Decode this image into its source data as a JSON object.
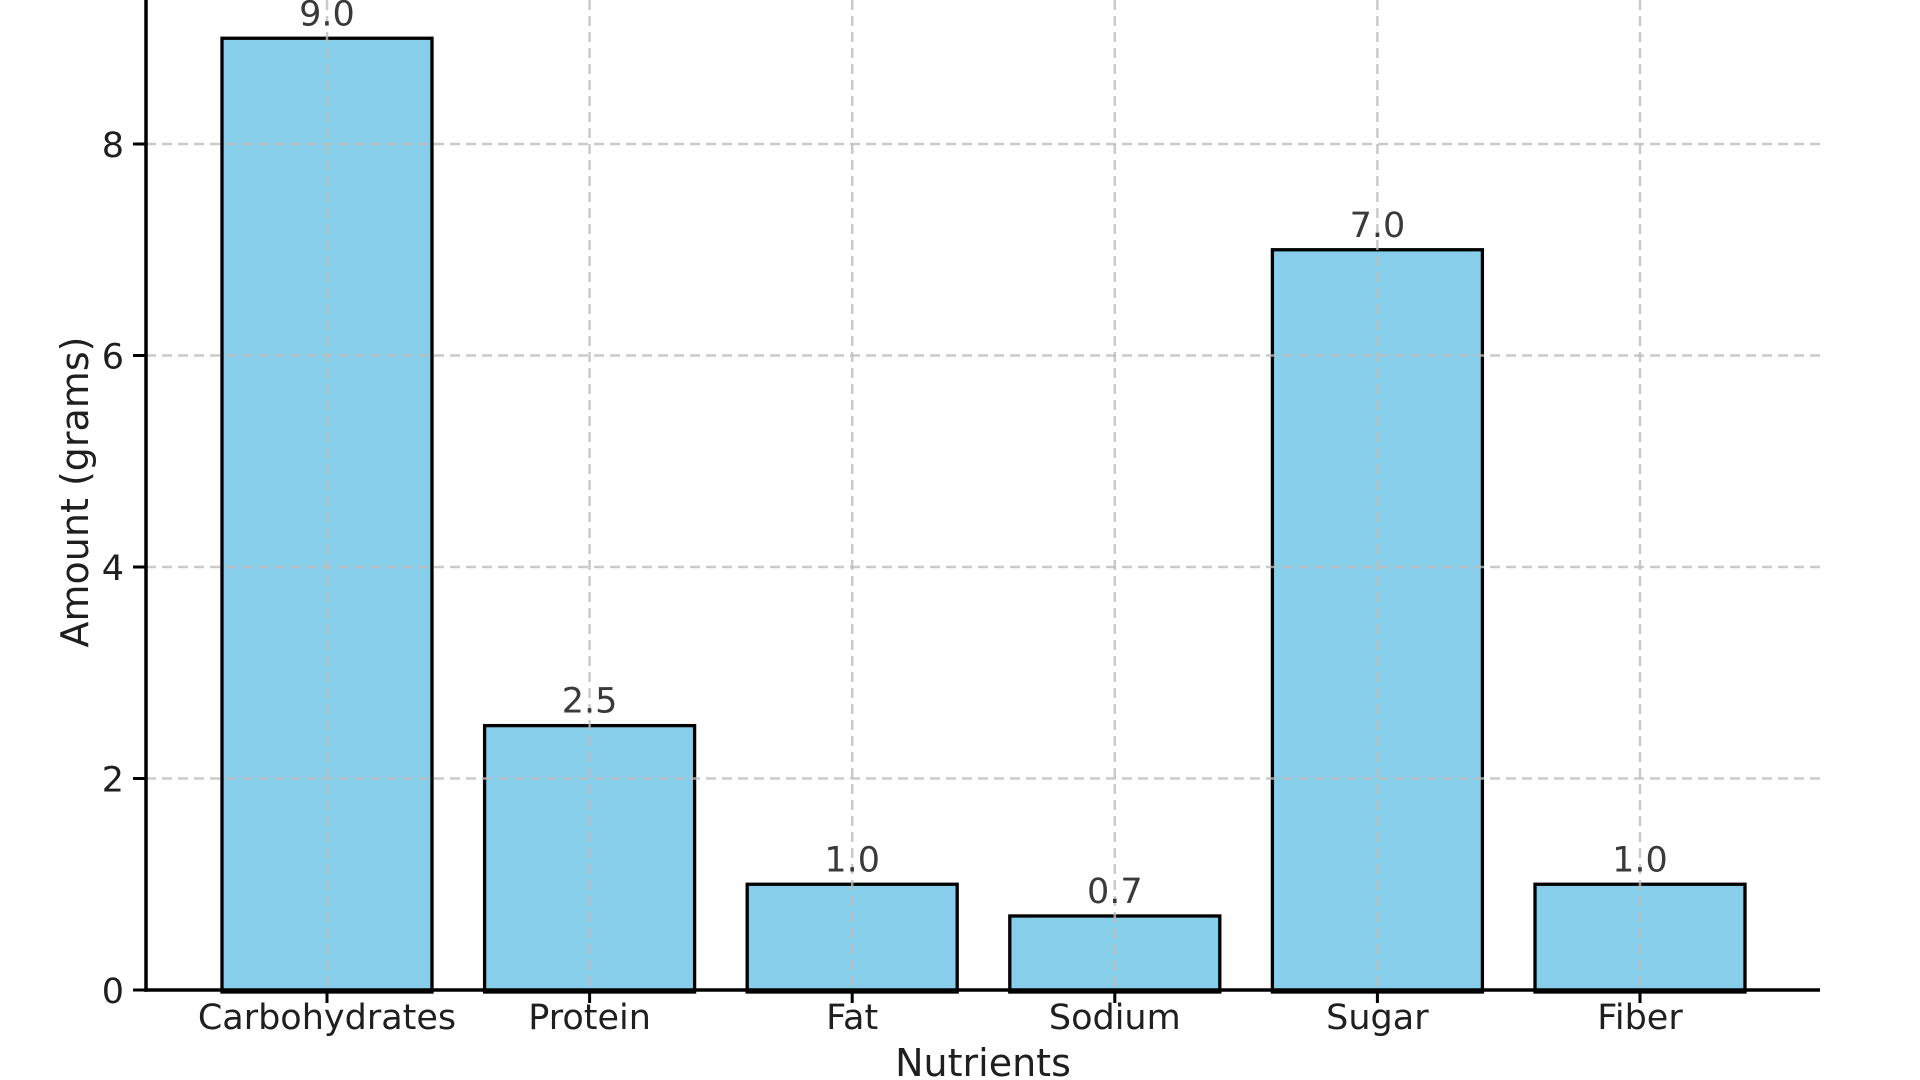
{
  "figure": {
    "background": "#ffffff"
  },
  "chart_data": {
    "type": "bar",
    "categories": [
      "Carbohydrates",
      "Protein",
      "Fat",
      "Sodium",
      "Sugar",
      "Fiber"
    ],
    "values": [
      9.0,
      2.5,
      1.0,
      0.7,
      7.0,
      1.0
    ],
    "value_labels": [
      "9.0",
      "2.5",
      "1.0",
      "0.7",
      "7.0",
      "1.0"
    ],
    "xlabel": "Nutrients",
    "ylabel": "Amount (grams)",
    "yticks": [
      0,
      2,
      4,
      6,
      8
    ],
    "ytick_labels": [
      "0",
      "2",
      "4",
      "6",
      "8"
    ],
    "ylim": [
      0,
      9.36
    ],
    "grid": true,
    "grid_style": "dashed",
    "grid_axes": "both",
    "top_cropped": true,
    "colors": {
      "bar_fill": "#87CEEB",
      "bar_edge": "#000000",
      "grid": "#bdbdbd",
      "spine": "#000000",
      "tick_text": "#1f1f1f",
      "axis_label_text": "#1f1f1f",
      "value_label_text": "#3a3a3a",
      "background": "#ffffff"
    }
  }
}
